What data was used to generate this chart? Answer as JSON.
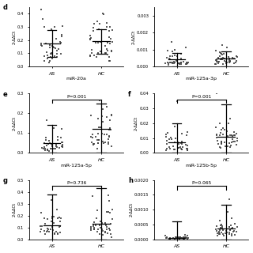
{
  "panels": [
    {
      "label": "d",
      "xlabel": "miR-20a",
      "ylim": [
        0.0,
        0.45
      ],
      "yticks": [
        0.0,
        0.1,
        0.2,
        0.3,
        0.4
      ],
      "ytick_labels": [
        "0.0",
        "0.1",
        "0.2",
        "0.3",
        "0.4"
      ],
      "ylabel": "2-ΔΔCt",
      "groups": [
        "AS",
        "HC"
      ],
      "as_mean": 0.175,
      "as_sd": 0.085,
      "hc_mean": 0.19,
      "hc_sd": 0.09,
      "as_n": 40,
      "hc_n": 45,
      "show_pvalue": false,
      "pvalue": "",
      "bar_mean_as": 0.175,
      "bar_sd_as": 0.1,
      "bar_mean_hc": 0.19,
      "bar_sd_hc": 0.095
    },
    {
      "label": "",
      "xlabel": "miR-125a-3p",
      "ylim": [
        0.0,
        0.0035
      ],
      "yticks": [
        0.0,
        0.001,
        0.002,
        0.003
      ],
      "ytick_labels": [
        "0.000",
        "0.001",
        "0.002",
        "0.003"
      ],
      "ylabel": "2-ΔΔCt",
      "groups": [
        "AS",
        "HC"
      ],
      "as_mean": 0.0004,
      "as_sd": 0.00035,
      "hc_mean": 0.00045,
      "hc_sd": 0.0004,
      "as_n": 40,
      "hc_n": 45,
      "show_pvalue": false,
      "pvalue": "",
      "bar_mean_as": 0.0004,
      "bar_sd_as": 0.0004,
      "bar_mean_hc": 0.00045,
      "bar_sd_hc": 0.00045
    },
    {
      "label": "e",
      "xlabel": "miR-125a-5p",
      "ylim": [
        0.0,
        0.3
      ],
      "yticks": [
        0.0,
        0.1,
        0.2,
        0.3
      ],
      "ytick_labels": [
        "0.0",
        "0.1",
        "0.2",
        "0.3"
      ],
      "ylabel": "2-ΔΔCt",
      "groups": [
        "AS",
        "HC"
      ],
      "as_mean": 0.045,
      "as_sd": 0.04,
      "hc_mean": 0.115,
      "hc_sd": 0.07,
      "as_n": 40,
      "hc_n": 45,
      "show_pvalue": true,
      "pvalue": "P=0.001",
      "bar_mean_as": 0.05,
      "bar_sd_as": 0.09,
      "bar_mean_hc": 0.12,
      "bar_sd_hc": 0.13
    },
    {
      "label": "f",
      "xlabel": "miR-125b-5p",
      "ylim": [
        0.0,
        0.04
      ],
      "yticks": [
        0.0,
        0.01,
        0.02,
        0.03,
        0.04
      ],
      "ytick_labels": [
        "0.00",
        "0.01",
        "0.02",
        "0.03",
        "0.04"
      ],
      "ylabel": "2-ΔΔCt",
      "groups": [
        "AS",
        "HC"
      ],
      "as_mean": 0.007,
      "as_sd": 0.003,
      "hc_mean": 0.011,
      "hc_sd": 0.007,
      "as_n": 40,
      "hc_n": 45,
      "show_pvalue": true,
      "pvalue": "P=0.001",
      "bar_mean_as": 0.007,
      "bar_sd_as": 0.013,
      "bar_mean_hc": 0.011,
      "bar_sd_hc": 0.022
    },
    {
      "label": "g",
      "xlabel": "",
      "ylim": [
        0.0,
        0.5
      ],
      "yticks": [
        0.0,
        0.1,
        0.2,
        0.3,
        0.4,
        0.5
      ],
      "ytick_labels": [
        "0.0",
        "0.1",
        "0.2",
        "0.3",
        "0.4",
        "0.5"
      ],
      "ylabel": "2-ΔΔCt",
      "groups": [
        "AS",
        "HC"
      ],
      "as_mean": 0.12,
      "as_sd": 0.06,
      "hc_mean": 0.13,
      "hc_sd": 0.07,
      "as_n": 38,
      "hc_n": 43,
      "show_pvalue": true,
      "pvalue": "P=0.736",
      "bar_mean_as": 0.12,
      "bar_sd_as": 0.26,
      "bar_mean_hc": 0.13,
      "bar_sd_hc": 0.3
    },
    {
      "label": "h",
      "xlabel": "",
      "ylim": [
        0.0,
        0.002
      ],
      "yticks": [
        0.0,
        0.0005,
        0.001,
        0.0015,
        0.002
      ],
      "ytick_labels": [
        "0.0000",
        "0.0005",
        "0.0010",
        "0.0015",
        "0.0020"
      ],
      "ylabel": "2-ΔΔCt",
      "groups": [
        "AS",
        "HC"
      ],
      "as_mean": 5e-05,
      "as_sd": 8e-05,
      "hc_mean": 0.00035,
      "hc_sd": 0.0003,
      "as_n": 38,
      "hc_n": 43,
      "show_pvalue": true,
      "pvalue": "P=0.065",
      "bar_mean_as": 5e-05,
      "bar_sd_as": 0.00055,
      "bar_mean_hc": 0.00035,
      "bar_sd_hc": 0.0008
    }
  ],
  "dot_color": "#404040",
  "line_color": "#000000",
  "bg_color": "#ffffff"
}
